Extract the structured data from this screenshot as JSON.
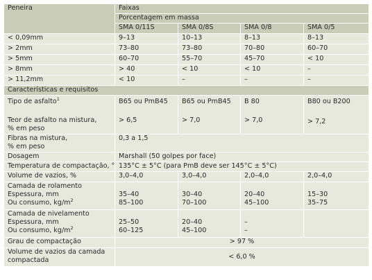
{
  "header": {
    "peneira": "Peneira",
    "faixas": "Faixas",
    "porcentagem": "Porcentagem em massa",
    "columns": [
      "SMA 0/11S",
      "SMA 0/8S",
      "SMA 0/8",
      "SMA 0/5"
    ]
  },
  "sieve_rows": [
    {
      "label": "< 0,09mm",
      "values": [
        "9–13",
        "10–13",
        "8–13",
        "8–13"
      ]
    },
    {
      "label": "> 2mm",
      "values": [
        "73–80",
        "73–80",
        "70–80",
        "60–70"
      ]
    },
    {
      "label": "> 5mm",
      "values": [
        "60–70",
        "55–70",
        "45–70",
        "< 10"
      ]
    },
    {
      "label": "> 8mm",
      "values": [
        "> 40",
        "< 10",
        "< 10",
        "–"
      ]
    },
    {
      "label": "> 11,2mm",
      "values": [
        "< 10",
        "–",
        "–",
        "–"
      ]
    }
  ],
  "section_title": "Características e requisitos",
  "asphalt": {
    "tipo_label": "Tipo de asfalto",
    "tipo_sup": "1",
    "teor_label": [
      "Teor de asfalto na mistura,",
      "% em peso"
    ],
    "tipo_values": [
      "B65 ou PmB45",
      "B65 ou PmB45",
      "B 80",
      "B80 ou B200"
    ],
    "teor_values": [
      "> 6,5",
      "> 7,0",
      "> 7,0",
      "> 7,2"
    ]
  },
  "fibras": {
    "label": [
      "Fibras na mistura,",
      "% em peso"
    ],
    "value": "0,3 a 1,5"
  },
  "dosagem": {
    "label": "Dosagem",
    "value": "Marshall (50 golpes por face)"
  },
  "temperatura": {
    "label": "Temperatura de compactação, °C",
    "value": "135°C ± 5°C (para PmB deve ser 145°C ± 5°C)"
  },
  "volume_vazios": {
    "label": "Volume de vazios, %",
    "values": [
      "3,0–4,0",
      "3,0–4,0",
      "2,0–4,0",
      "2,0–4,0"
    ]
  },
  "rolamento": {
    "label": [
      "Camada de rolamento",
      "Espessura, mm",
      "Ou consumo, kg/m",
      "2"
    ],
    "espessura": [
      "35–40",
      "30–40",
      "20–40",
      "15–30"
    ],
    "consumo": [
      "85–100",
      "70–100",
      "45–100",
      "35–75"
    ]
  },
  "nivelamento": {
    "label": [
      "Camada de nivelamento",
      "Espessura, mm",
      "Ou consumo, kg/m",
      "2"
    ],
    "espessura": [
      "25–50",
      "20–40",
      "–"
    ],
    "consumo": [
      "60–125",
      "45–100",
      "–"
    ]
  },
  "grau": {
    "label": "Grau de compactação",
    "value": "> 97 %"
  },
  "volume_camada": {
    "label": [
      "Volume de vazios da camada",
      "compactada"
    ],
    "value": "< 6,0 %"
  }
}
